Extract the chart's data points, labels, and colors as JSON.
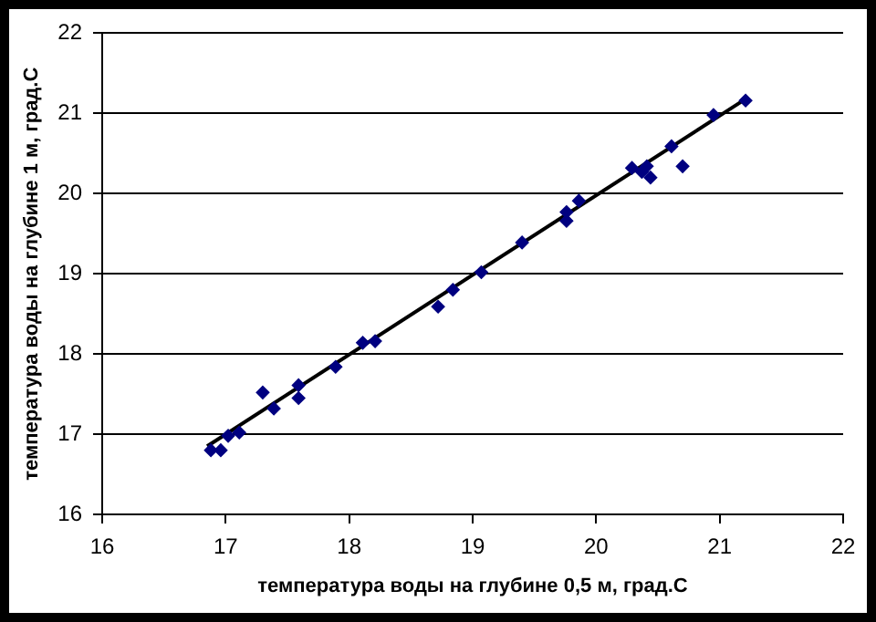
{
  "chart_data": {
    "type": "scatter",
    "xlabel": "температура воды на глубине 0,5 м, град.С",
    "ylabel": "температура воды на глубине 1 м, град.С",
    "xlim": [
      16,
      22
    ],
    "xticks": [
      16,
      17,
      18,
      19,
      20,
      21,
      22
    ],
    "ylim": [
      16,
      22
    ],
    "yticks": [
      16,
      17,
      18,
      19,
      20,
      21,
      22
    ],
    "grid": "y",
    "legend": false,
    "marker": "diamond",
    "series": [
      {
        "type": "scatter",
        "color": "#000080",
        "x": [
          16.88,
          16.96,
          17.02,
          17.11,
          17.3,
          17.39,
          17.59,
          17.59,
          17.89,
          18.11,
          18.21,
          18.72,
          18.84,
          19.07,
          19.4,
          19.76,
          19.76,
          19.86,
          20.29,
          20.37,
          20.41,
          20.44,
          20.61,
          20.7,
          20.95,
          21.21
        ],
        "values": [
          16.8,
          16.8,
          16.98,
          17.02,
          17.52,
          17.32,
          17.61,
          17.45,
          17.84,
          18.14,
          18.16,
          18.59,
          18.8,
          19.02,
          19.39,
          19.66,
          19.77,
          19.91,
          20.32,
          20.27,
          20.34,
          20.2,
          20.59,
          20.34,
          20.98,
          21.16
        ]
      },
      {
        "type": "line",
        "color": "#000000",
        "x": [
          16.85,
          21.2
        ],
        "values": [
          16.85,
          21.17
        ],
        "marker": "none"
      }
    ]
  }
}
